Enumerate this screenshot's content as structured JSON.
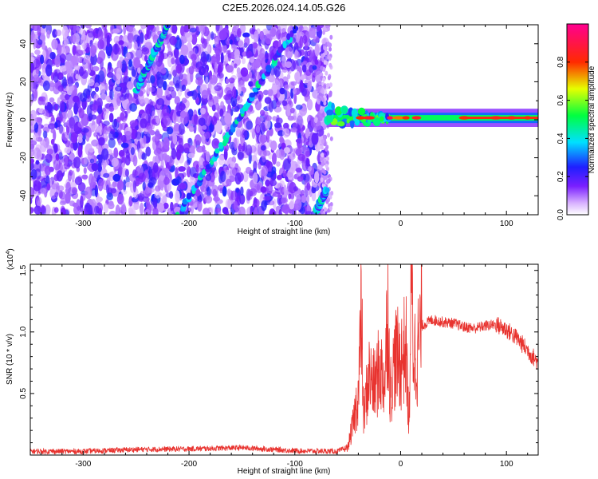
{
  "figure": {
    "title": "C2E5.2026.024.14.05.G26"
  },
  "chart_data": [
    {
      "type": "heatmap",
      "xlabel": "Height of straight line (km)",
      "ylabel": "Frequency (Hz)",
      "xlim": [
        -350,
        130
      ],
      "ylim": [
        -50,
        50
      ],
      "x_ticks": [
        -300,
        -200,
        -100,
        0,
        100
      ],
      "x_tick_labels": [
        "-300",
        "-200",
        "-100",
        "0",
        "100"
      ],
      "y_ticks": [
        -40,
        -20,
        0,
        20,
        40
      ],
      "y_tick_labels": [
        "-40",
        "-20",
        "0",
        "20",
        "40"
      ],
      "colorbar": {
        "label": "Normalized spectral amplitude",
        "range": [
          0,
          1
        ],
        "ticks": [
          0.0,
          0.2,
          0.4,
          0.6,
          0.8
        ],
        "tick_labels": [
          "0.0",
          "0.2",
          "0.4",
          "0.6",
          "0.8"
        ],
        "colormap": "rainbow (white-violet-blue-cyan-green-yellow-red-magenta)"
      },
      "features": {
        "noise_region_x": [
          -350,
          -70
        ],
        "carrier_band": {
          "x": [
            -70,
            130
          ],
          "freq_hz": 1,
          "width_hz": 3,
          "peak_amplitude": 1.0
        },
        "diagonal_streaks": [
          {
            "x_start": -250,
            "y_start": 15,
            "x_end": -220,
            "y_end": 50
          },
          {
            "x_start": -210,
            "y_start": -50,
            "x_end": -100,
            "y_end": 48
          },
          {
            "x_start": -80,
            "y_start": -48,
            "x_end": -70,
            "y_end": -37
          }
        ]
      }
    },
    {
      "type": "line",
      "xlabel": "Height of straight line (km)",
      "ylabel": "SNR (10 * v/v)",
      "y_multiplier_label": "(x10",
      "y_multiplier_exponent": "4",
      "y_multiplier_close": ")",
      "xlim": [
        -350,
        130
      ],
      "ylim": [
        0,
        15500
      ],
      "x_ticks": [
        -300,
        -200,
        -100,
        0,
        100
      ],
      "x_tick_labels": [
        "-300",
        "-200",
        "-100",
        "0",
        "100"
      ],
      "y_ticks": [
        5000,
        10000,
        15000
      ],
      "y_tick_labels": [
        "0.5",
        "1.0",
        "1.5"
      ],
      "color": "#e8332f",
      "series": [
        {
          "x": [
            -350,
            -300,
            -250,
            -200,
            -150,
            -100,
            -60,
            -50,
            -45,
            -40,
            -37,
            -35,
            -30,
            -25,
            -20,
            -15,
            -12,
            -10,
            -5,
            0,
            5,
            8,
            10,
            12,
            15,
            20,
            30,
            40,
            50,
            60,
            70,
            80,
            90,
            100,
            110,
            120,
            130
          ],
          "values": [
            300,
            300,
            450,
            500,
            600,
            350,
            300,
            600,
            2500,
            5000,
            11500,
            3000,
            6500,
            5500,
            7000,
            6000,
            12500,
            5000,
            8000,
            7500,
            9000,
            2000,
            15500,
            8500,
            8000,
            10500,
            11000,
            10800,
            10700,
            10400,
            10300,
            10500,
            10600,
            10200,
            9500,
            8500,
            7500
          ]
        }
      ]
    }
  ]
}
